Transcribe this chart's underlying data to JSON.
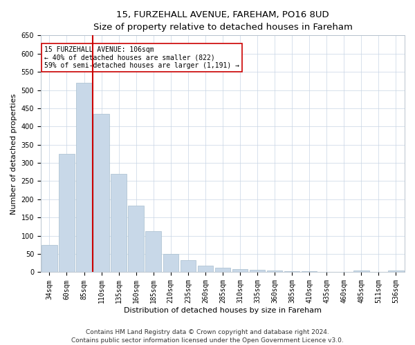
{
  "title": "15, FURZEHALL AVENUE, FAREHAM, PO16 8UD",
  "subtitle": "Size of property relative to detached houses in Fareham",
  "xlabel": "Distribution of detached houses by size in Fareham",
  "ylabel": "Number of detached properties",
  "categories": [
    "34sqm",
    "60sqm",
    "85sqm",
    "110sqm",
    "135sqm",
    "160sqm",
    "185sqm",
    "210sqm",
    "235sqm",
    "260sqm",
    "285sqm",
    "310sqm",
    "335sqm",
    "360sqm",
    "385sqm",
    "410sqm",
    "435sqm",
    "460sqm",
    "485sqm",
    "511sqm",
    "536sqm"
  ],
  "values": [
    75,
    325,
    520,
    435,
    270,
    183,
    113,
    50,
    33,
    18,
    13,
    8,
    6,
    4,
    3,
    2,
    0,
    0,
    5,
    0,
    5
  ],
  "bar_color": "#c8d8e8",
  "bar_edgecolor": "#a8bece",
  "vline_color": "#cc0000",
  "annotation_text": "15 FURZEHALL AVENUE: 106sqm\n← 40% of detached houses are smaller (822)\n59% of semi-detached houses are larger (1,191) →",
  "annotation_box_color": "#cc0000",
  "ylim": [
    0,
    650
  ],
  "yticks": [
    0,
    50,
    100,
    150,
    200,
    250,
    300,
    350,
    400,
    450,
    500,
    550,
    600,
    650
  ],
  "footer1": "Contains HM Land Registry data © Crown copyright and database right 2024.",
  "footer2": "Contains public sector information licensed under the Open Government Licence v3.0.",
  "title_fontsize": 9.5,
  "subtitle_fontsize": 8.5,
  "xlabel_fontsize": 8,
  "ylabel_fontsize": 8,
  "tick_fontsize": 7,
  "annotation_fontsize": 7,
  "footer_fontsize": 6.5,
  "vline_index": 2.5
}
